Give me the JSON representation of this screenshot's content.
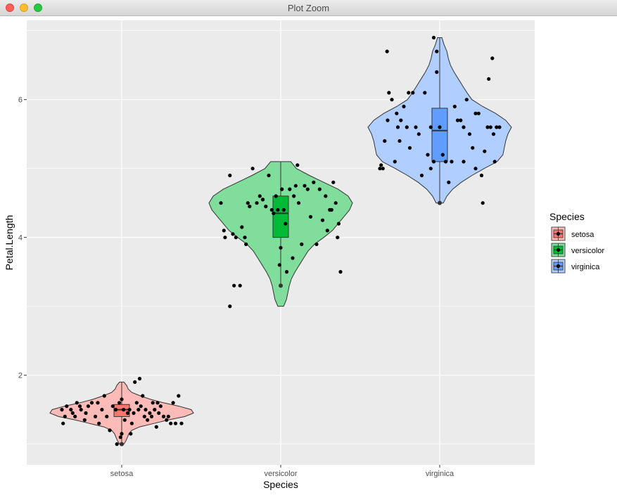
{
  "window": {
    "title": "Plot Zoom"
  },
  "colors": {
    "panel": "#ebebeb",
    "grid": "#ffffff",
    "point": "#000000",
    "outline": "#333333"
  },
  "chart_data": {
    "type": "violin",
    "xlabel": "Species",
    "ylabel": "Petal.Length",
    "ylim": [
      0.7,
      7.15
    ],
    "yticks": [
      "2",
      "4",
      "6"
    ],
    "legend": {
      "title": "Species",
      "placement": "right"
    },
    "series": [
      {
        "name": "setosa",
        "fill": "#f8766d",
        "box": {
          "min": 1.0,
          "q1": 1.4,
          "median": 1.5,
          "q3": 1.575,
          "max": 1.9
        },
        "violin": [
          [
            1.0,
            0.03
          ],
          [
            1.05,
            0.06
          ],
          [
            1.1,
            0.08
          ],
          [
            1.15,
            0.1
          ],
          [
            1.2,
            0.14
          ],
          [
            1.25,
            0.25
          ],
          [
            1.3,
            0.45
          ],
          [
            1.35,
            0.65
          ],
          [
            1.4,
            0.88
          ],
          [
            1.45,
            1.0
          ],
          [
            1.5,
            0.97
          ],
          [
            1.55,
            0.8
          ],
          [
            1.6,
            0.58
          ],
          [
            1.65,
            0.4
          ],
          [
            1.7,
            0.26
          ],
          [
            1.75,
            0.14
          ],
          [
            1.8,
            0.09
          ],
          [
            1.85,
            0.07
          ],
          [
            1.9,
            0.03
          ]
        ],
        "points": [
          [
            -1.0,
            1.5
          ],
          [
            -0.98,
            1.3
          ],
          [
            -0.95,
            1.4
          ],
          [
            -0.92,
            1.55
          ],
          [
            -0.85,
            1.5
          ],
          [
            -0.82,
            1.45
          ],
          [
            -0.78,
            1.4
          ],
          [
            -0.75,
            1.6
          ],
          [
            -0.68,
            1.5
          ],
          [
            -0.62,
            1.35
          ],
          [
            -0.6,
            1.45
          ],
          [
            -0.56,
            1.55
          ],
          [
            -0.5,
            1.6
          ],
          [
            -0.44,
            1.4
          ],
          [
            -0.38,
            1.3
          ],
          [
            -0.33,
            1.5
          ],
          [
            -0.29,
            1.7
          ],
          [
            -0.25,
            1.4
          ],
          [
            -0.2,
            1.2
          ],
          [
            -0.15,
            1.55
          ],
          [
            -0.1,
            1.5
          ],
          [
            -0.08,
            1.0
          ],
          [
            -0.04,
            1.6
          ],
          [
            0.0,
            1.65
          ],
          [
            -0.02,
            1.1
          ],
          [
            0.0,
            1.15
          ],
          [
            0.03,
            1.5
          ],
          [
            0.05,
            1.35
          ],
          [
            0.1,
            1.45
          ],
          [
            0.13,
            1.5
          ],
          [
            0.17,
            1.3
          ],
          [
            0.2,
            1.45
          ],
          [
            0.22,
            1.9
          ],
          [
            0.25,
            1.6
          ],
          [
            0.28,
            1.5
          ],
          [
            0.32,
            1.55
          ],
          [
            0.35,
            1.7
          ],
          [
            0.38,
            1.4
          ],
          [
            0.4,
            1.5
          ],
          [
            0.43,
            1.35
          ],
          [
            0.47,
            1.45
          ],
          [
            0.5,
            1.4
          ],
          [
            0.52,
            1.6
          ],
          [
            0.55,
            1.5
          ],
          [
            0.58,
            1.25
          ],
          [
            0.62,
            1.45
          ],
          [
            0.65,
            1.55
          ],
          [
            0.7,
            1.4
          ],
          [
            0.75,
            1.35
          ],
          [
            0.78,
            1.4
          ],
          [
            0.82,
            1.3
          ],
          [
            0.86,
            1.6
          ],
          [
            0.9,
            1.3
          ],
          [
            0.95,
            1.7
          ],
          [
            1.0,
            1.3
          ],
          [
            0.15,
            1.15
          ],
          [
            0.3,
            1.95
          ],
          [
            -0.4,
            1.6
          ],
          [
            -0.7,
            1.55
          ],
          [
            0.6,
            1.6
          ]
        ]
      },
      {
        "name": "versicolor",
        "fill": "#00ba38",
        "box": {
          "min": 3.3,
          "q1": 4.0,
          "median": 4.35,
          "q3": 4.6,
          "max": 5.1
        },
        "violin": [
          [
            3.0,
            0.04
          ],
          [
            3.1,
            0.08
          ],
          [
            3.2,
            0.1
          ],
          [
            3.3,
            0.12
          ],
          [
            3.4,
            0.15
          ],
          [
            3.5,
            0.2
          ],
          [
            3.6,
            0.26
          ],
          [
            3.7,
            0.32
          ],
          [
            3.8,
            0.38
          ],
          [
            3.9,
            0.47
          ],
          [
            4.0,
            0.6
          ],
          [
            4.1,
            0.72
          ],
          [
            4.2,
            0.8
          ],
          [
            4.3,
            0.88
          ],
          [
            4.4,
            0.96
          ],
          [
            4.5,
            1.0
          ],
          [
            4.6,
            0.94
          ],
          [
            4.7,
            0.8
          ],
          [
            4.8,
            0.6
          ],
          [
            4.9,
            0.4
          ],
          [
            5.0,
            0.22
          ],
          [
            5.1,
            0.14
          ]
        ],
        "points": [
          [
            -1.0,
            4.5
          ],
          [
            -0.95,
            4.1
          ],
          [
            -0.93,
            4.0
          ],
          [
            -0.85,
            4.9
          ],
          [
            -0.8,
            4.05
          ],
          [
            -0.78,
            3.3
          ],
          [
            -0.75,
            4.0
          ],
          [
            -0.68,
            3.3
          ],
          [
            -0.65,
            4.15
          ],
          [
            -0.6,
            4.0
          ],
          [
            -0.58,
            3.9
          ],
          [
            -0.55,
            4.5
          ],
          [
            -0.52,
            4.45
          ],
          [
            -0.47,
            5.0
          ],
          [
            -0.4,
            4.5
          ],
          [
            -0.35,
            4.6
          ],
          [
            -0.3,
            4.55
          ],
          [
            -0.25,
            4.45
          ],
          [
            -0.2,
            4.9
          ],
          [
            -0.15,
            4.4
          ],
          [
            -0.12,
            4.35
          ],
          [
            -0.08,
            4.6
          ],
          [
            -0.05,
            4.4
          ],
          [
            -0.02,
            3.6
          ],
          [
            0.0,
            3.85
          ],
          [
            0.02,
            4.7
          ],
          [
            0.05,
            4.4
          ],
          [
            0.08,
            4.2
          ],
          [
            0.1,
            3.5
          ],
          [
            0.15,
            4.7
          ],
          [
            0.2,
            3.7
          ],
          [
            0.25,
            4.75
          ],
          [
            0.3,
            4.5
          ],
          [
            0.35,
            3.9
          ],
          [
            0.4,
            4.75
          ],
          [
            0.45,
            4.7
          ],
          [
            0.5,
            4.3
          ],
          [
            0.55,
            4.8
          ],
          [
            0.6,
            3.9
          ],
          [
            0.65,
            4.7
          ],
          [
            0.7,
            4.25
          ],
          [
            0.75,
            4.6
          ],
          [
            0.78,
            4.1
          ],
          [
            0.82,
            4.4
          ],
          [
            0.85,
            4.4
          ],
          [
            0.88,
            4.8
          ],
          [
            0.92,
            4.5
          ],
          [
            0.95,
            4.0
          ],
          [
            0.97,
            4.2
          ],
          [
            1.0,
            3.5
          ],
          [
            -0.85,
            3.0
          ],
          [
            0.22,
            4.6
          ],
          [
            0.28,
            5.05
          ],
          [
            -0.3,
            4.55
          ]
        ]
      },
      {
        "name": "virginica",
        "fill": "#619cff",
        "box": {
          "min": 4.5,
          "q1": 5.1,
          "median": 5.55,
          "q3": 5.875,
          "max": 6.9
        },
        "violin": [
          [
            4.5,
            0.05
          ],
          [
            4.6,
            0.1
          ],
          [
            4.7,
            0.18
          ],
          [
            4.8,
            0.3
          ],
          [
            4.9,
            0.45
          ],
          [
            5.0,
            0.62
          ],
          [
            5.1,
            0.8
          ],
          [
            5.2,
            0.88
          ],
          [
            5.3,
            0.9
          ],
          [
            5.4,
            0.92
          ],
          [
            5.5,
            0.95
          ],
          [
            5.6,
            1.0
          ],
          [
            5.7,
            0.92
          ],
          [
            5.8,
            0.78
          ],
          [
            5.9,
            0.6
          ],
          [
            6.0,
            0.45
          ],
          [
            6.1,
            0.38
          ],
          [
            6.2,
            0.32
          ],
          [
            6.3,
            0.26
          ],
          [
            6.4,
            0.2
          ],
          [
            6.5,
            0.15
          ],
          [
            6.6,
            0.12
          ],
          [
            6.7,
            0.1
          ],
          [
            6.8,
            0.06
          ],
          [
            6.9,
            0.03
          ]
        ],
        "points": [
          [
            -1.0,
            5.0
          ],
          [
            -0.98,
            5.05
          ],
          [
            -0.95,
            5.0
          ],
          [
            -0.92,
            5.4
          ],
          [
            -0.88,
            6.7
          ],
          [
            -0.87,
            5.7
          ],
          [
            -0.85,
            6.1
          ],
          [
            -0.8,
            6.0
          ],
          [
            -0.75,
            5.1
          ],
          [
            -0.72,
            5.8
          ],
          [
            -0.7,
            5.6
          ],
          [
            -0.67,
            5.4
          ],
          [
            -0.65,
            5.7
          ],
          [
            -0.6,
            5.9
          ],
          [
            -0.55,
            5.6
          ],
          [
            -0.52,
            6.1
          ],
          [
            -0.5,
            5.3
          ],
          [
            -0.45,
            6.1
          ],
          [
            -0.4,
            5.6
          ],
          [
            -0.35,
            5.5
          ],
          [
            -0.3,
            4.9
          ],
          [
            -0.25,
            6.1
          ],
          [
            -0.2,
            5.2
          ],
          [
            -0.15,
            5.6
          ],
          [
            -0.1,
            5.1
          ],
          [
            -0.05,
            6.4
          ],
          [
            0.0,
            5.6
          ],
          [
            0.05,
            5.2
          ],
          [
            0.1,
            5.1
          ],
          [
            0.15,
            4.8
          ],
          [
            0.2,
            5.1
          ],
          [
            0.25,
            5.9
          ],
          [
            0.3,
            5.7
          ],
          [
            0.35,
            5.7
          ],
          [
            0.4,
            5.1
          ],
          [
            0.45,
            6.0
          ],
          [
            0.5,
            5.5
          ],
          [
            0.55,
            5.3
          ],
          [
            0.6,
            5.8
          ],
          [
            0.65,
            5.8
          ],
          [
            0.7,
            4.9
          ],
          [
            0.72,
            4.5
          ],
          [
            0.75,
            5.25
          ],
          [
            0.8,
            5.6
          ],
          [
            0.82,
            6.3
          ],
          [
            0.85,
            5.6
          ],
          [
            0.88,
            6.6
          ],
          [
            0.9,
            5.5
          ],
          [
            0.92,
            5.1
          ],
          [
            0.95,
            5.6
          ],
          [
            1.0,
            5.6
          ],
          [
            -0.1,
            6.9
          ],
          [
            -0.05,
            6.7
          ],
          [
            -0.15,
            5.0
          ],
          [
            0.6,
            5.0
          ],
          [
            0.4,
            5.6
          ]
        ]
      }
    ]
  }
}
